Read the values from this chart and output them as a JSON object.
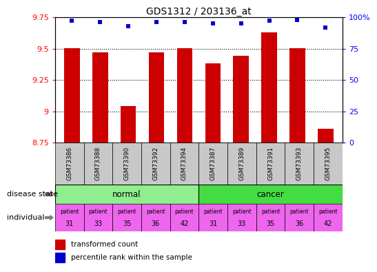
{
  "title": "GDS1312 / 203136_at",
  "samples": [
    "GSM73386",
    "GSM73388",
    "GSM73390",
    "GSM73392",
    "GSM73394",
    "GSM73387",
    "GSM73389",
    "GSM73391",
    "GSM73393",
    "GSM73395"
  ],
  "transformed_counts": [
    9.5,
    9.47,
    9.04,
    9.47,
    9.5,
    9.38,
    9.44,
    9.63,
    9.5,
    8.86
  ],
  "percentile_ranks": [
    97,
    96,
    93,
    96,
    96,
    95,
    95,
    97,
    98,
    92
  ],
  "ylim_left": [
    8.75,
    9.75
  ],
  "ylim_right": [
    0,
    100
  ],
  "yticks_left": [
    8.75,
    9.0,
    9.25,
    9.5,
    9.75
  ],
  "yticks_right": [
    0,
    25,
    50,
    75,
    100
  ],
  "ytick_labels_left": [
    "8.75",
    "9",
    "9.25",
    "9.5",
    "9.75"
  ],
  "ytick_labels_right": [
    "0",
    "25",
    "50",
    "75",
    "100%"
  ],
  "bar_color": "#cc0000",
  "dot_color": "#0000cc",
  "normal_color": "#90ee90",
  "cancer_color": "#44dd44",
  "individual_color": "#ee66ee",
  "sample_color": "#c8c8c8",
  "bar_width": 0.55,
  "individuals": [
    "patient\n31",
    "patient\n33",
    "patient\n35",
    "patient\n36",
    "patient\n42",
    "patient\n31",
    "patient\n33",
    "patient\n35",
    "patient\n36",
    "patient\n42"
  ],
  "legend_labels": [
    "transformed count",
    "percentile rank within the sample"
  ]
}
